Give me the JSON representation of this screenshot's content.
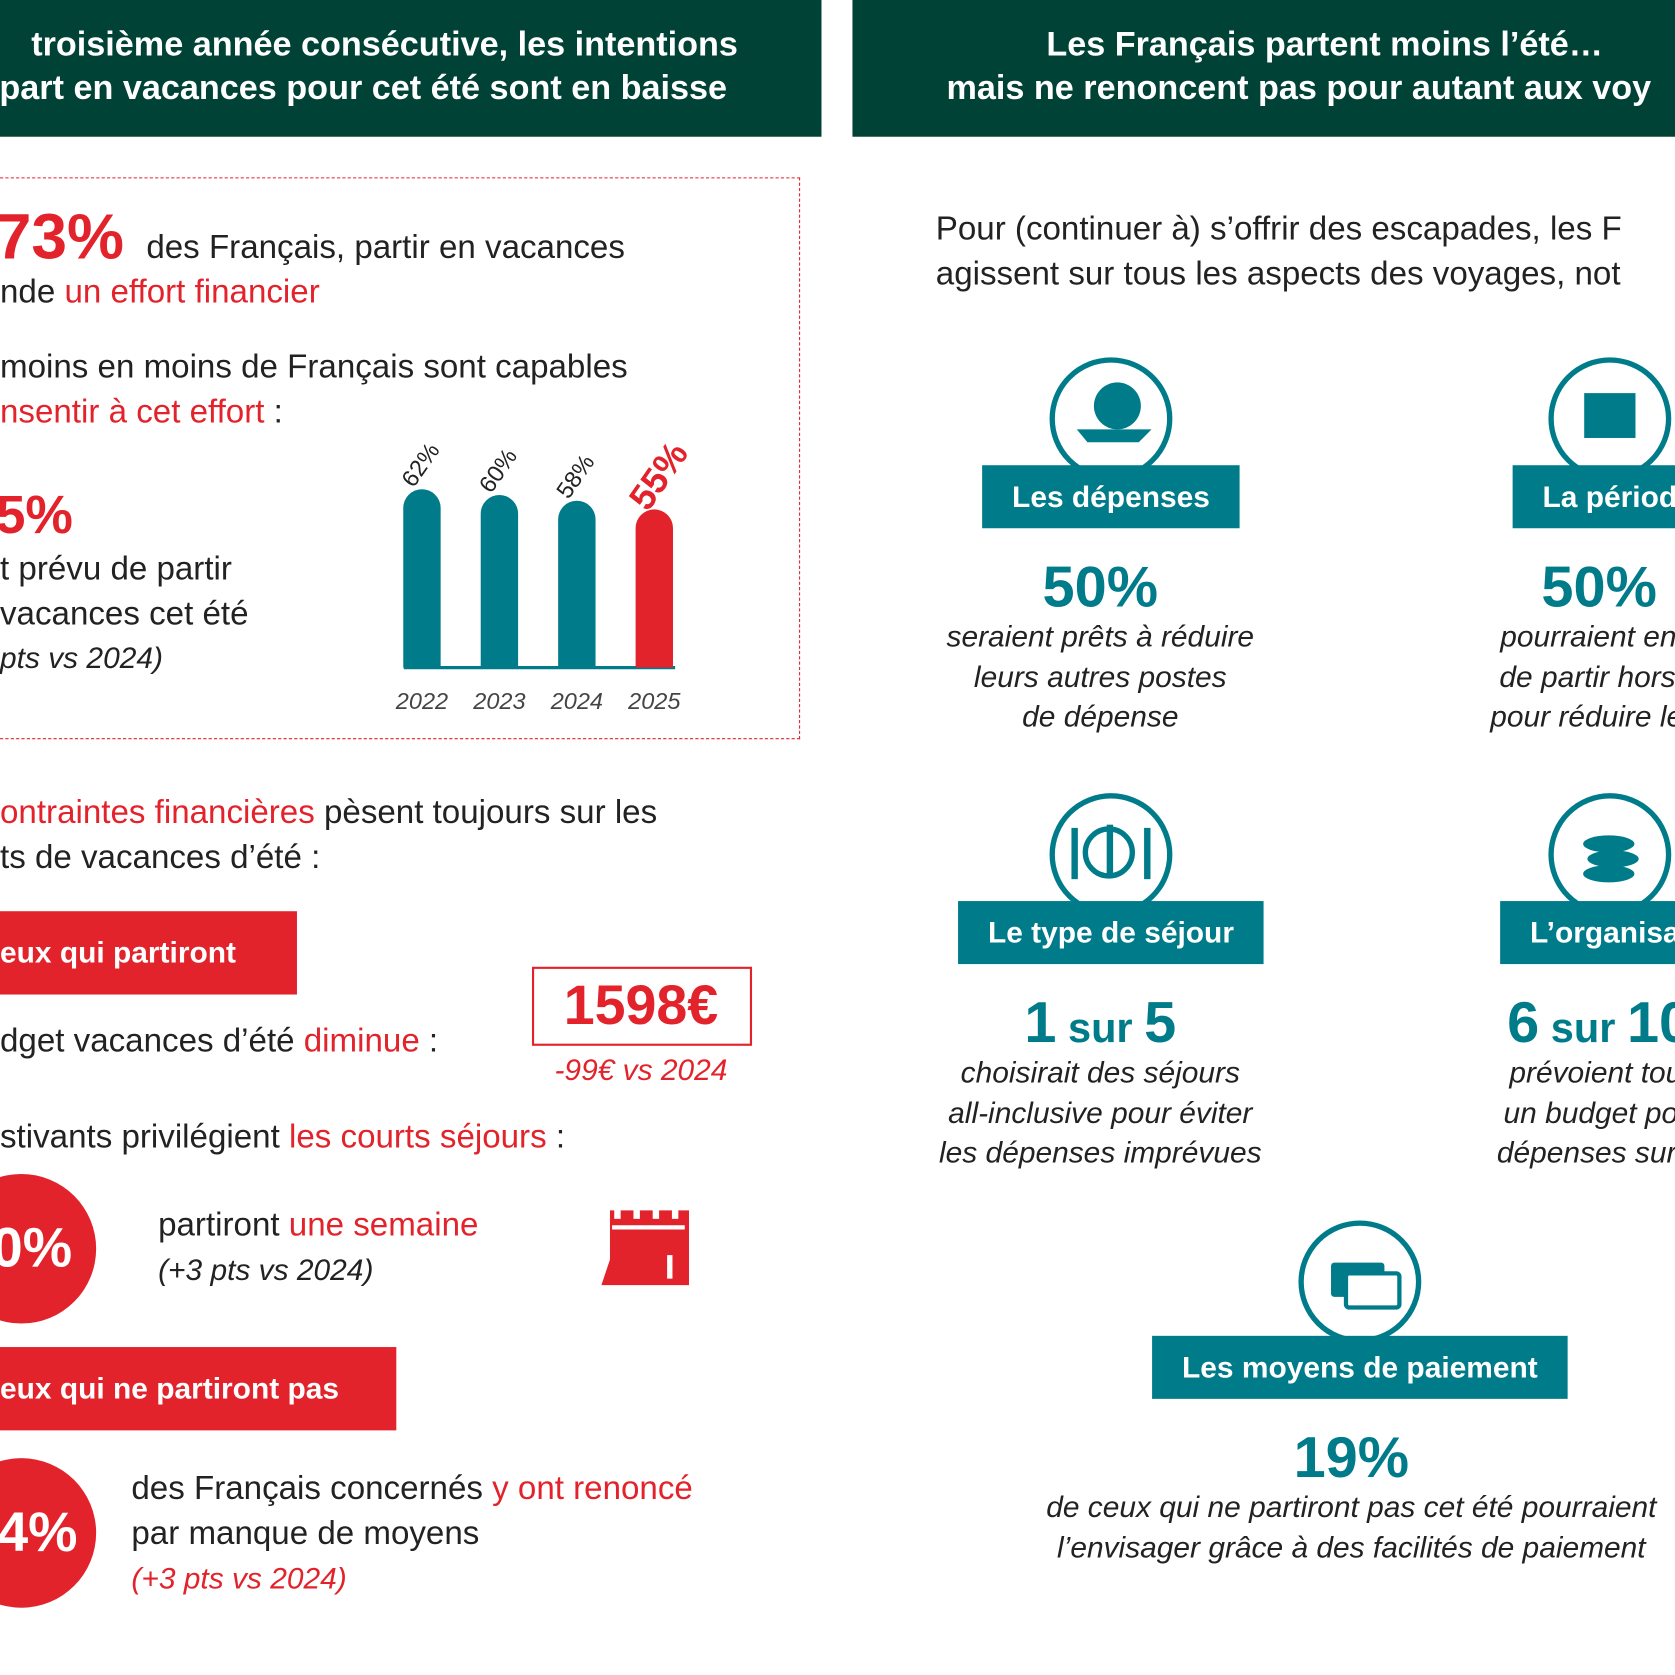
{
  "left_panel": {
    "header": [
      "troisième année consécutive, les intentions",
      "part en vacances pour cet été sont en baisse"
    ],
    "effort": {
      "stat": "73%",
      "lines": [
        [
          {
            "t": "des Français, partir en vacances"
          }
        ],
        [
          {
            "t": "nde "
          },
          {
            "t": "un effort financier",
            "hl": true
          }
        ]
      ]
    },
    "capacity": {
      "lines": [
        [
          {
            "t": "moins en moins de Français sont capables"
          }
        ],
        [
          {
            "t": "nsentir à cet effort",
            "hl": true
          },
          {
            "t": " :"
          }
        ]
      ],
      "stat": "5%",
      "stat_lines": [
        "t prévu de partir",
        "vacances cet été"
      ],
      "note": "pts vs 2024)"
    },
    "bar_chart": {
      "categories": [
        "2022",
        "2023",
        "2024",
        "2025"
      ],
      "values": [
        62,
        60,
        58,
        55
      ],
      "value_labels": [
        "62%",
        "60%",
        "58%",
        "55%"
      ],
      "colors": [
        "#007b8a",
        "#007b8a",
        "#007b8a",
        "#e3232b"
      ]
    },
    "constraints": {
      "lines": [
        [
          {
            "t": "ontraintes financières",
            "hl": true
          },
          {
            "t": " pèsent toujours sur les"
          }
        ],
        [
          {
            "t": "ts de vacances d’été :"
          }
        ]
      ]
    },
    "leaving": {
      "tag": "eux qui partiront",
      "budget_line": [
        {
          "t": "dget vacances d’été "
        },
        {
          "t": "diminue",
          "hl": true
        },
        {
          "t": " :"
        }
      ],
      "budget": "1598€",
      "budget_change": "-99€ vs 2024",
      "short_stays_line": [
        {
          "t": "stivants privilégient "
        },
        {
          "t": "les courts séjours",
          "hl": true
        },
        {
          "t": " :"
        }
      ],
      "stat": "0%",
      "stat_line": [
        {
          "t": "partiront "
        },
        {
          "t": "une semaine",
          "hl": true
        }
      ],
      "note": "(+3 pts vs 2024)"
    },
    "not_leaving": {
      "tag": "eux qui ne partiront pas",
      "stat": "4%",
      "lines": [
        [
          {
            "t": "des Français concernés "
          },
          {
            "t": "y ont renoncé",
            "hl": true
          }
        ],
        [
          {
            "t": "par manque de moyens"
          }
        ]
      ],
      "note": "(+3 pts vs 2024)"
    }
  },
  "right_panel": {
    "header": [
      "Les Français partent moins l’été…",
      "mais ne renoncent pas pour autant aux voy"
    ],
    "intro": [
      "Pour (continuer à) s’offrir des escapades, les F",
      "agissent sur tous les aspects des voyages, not"
    ],
    "cards": [
      {
        "label": "Les dépenses",
        "stat": [
          {
            "t": "50%"
          }
        ],
        "lines": [
          "seraient prêts à réduire",
          "leurs autres postes",
          "de dépense"
        ]
      },
      {
        "label": "La périod",
        "stat": [
          {
            "t": "50%"
          }
        ],
        "lines": [
          "pourraient envi",
          "de partir hors s",
          "pour réduire le b"
        ]
      },
      {
        "label": "Le type de séjour",
        "stat": [
          {
            "t": "1"
          },
          {
            "t": " sur ",
            "small": true
          },
          {
            "t": "5"
          }
        ],
        "lines": [
          "choisirait des séjours",
          "all-inclusive pour éviter",
          "les dépenses imprévues"
        ]
      },
      {
        "label": "L’organisat",
        "stat": [
          {
            "t": "6"
          },
          {
            "t": " sur ",
            "small": true
          },
          {
            "t": "10"
          }
        ],
        "lines": [
          "prévoient touj",
          "un budget pou",
          "dépenses sur p"
        ]
      },
      {
        "label": "Les moyens de paiement",
        "stat": [
          {
            "t": "19%"
          }
        ],
        "lines": [
          "de ceux qui ne partiront pas cet été pourraient",
          "l’envisager grâce à des facilités de paiement"
        ]
      }
    ]
  }
}
